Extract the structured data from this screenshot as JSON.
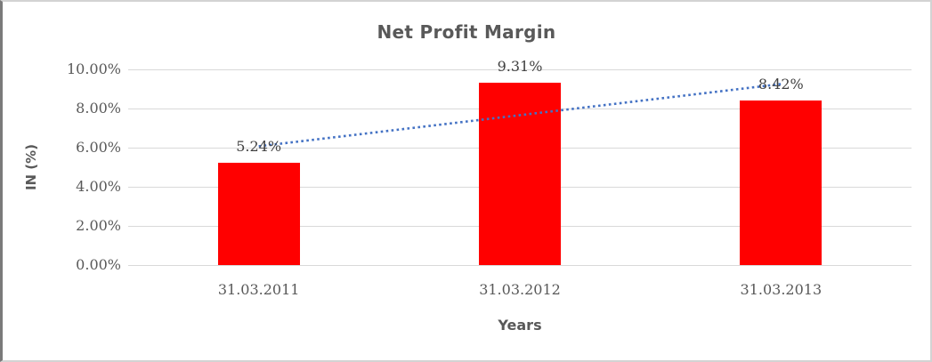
{
  "chart_data": {
    "type": "bar",
    "title": "Net Profit Margin",
    "xlabel": "Years",
    "ylabel": "IN (%)",
    "categories": [
      "31.03.2011",
      "31.03.2012",
      "31.03.2013"
    ],
    "values": [
      5.24,
      9.31,
      8.42
    ],
    "data_labels": [
      "5.24%",
      "9.31%",
      "8.42%"
    ],
    "y_ticks": [
      {
        "value": 10,
        "label": "10.00%"
      },
      {
        "value": 8,
        "label": "8.00%"
      },
      {
        "value": 6,
        "label": "6.00%"
      },
      {
        "value": 4,
        "label": "4.00%"
      },
      {
        "value": 2,
        "label": "2.00%"
      },
      {
        "value": 0,
        "label": "0.00%"
      }
    ],
    "ylim": [
      0,
      10
    ],
    "grid": true,
    "legend": "none",
    "trendline": {
      "style": "dotted",
      "color": "#4472C4",
      "start_value": 6.07,
      "end_value": 9.25
    },
    "colors": {
      "bar": "#FF0000",
      "gridline": "#D9D9D9",
      "title_text": "#595959",
      "axis_title_text": "#595959",
      "tick_text": "#595959",
      "data_label_text": "#404040"
    }
  }
}
